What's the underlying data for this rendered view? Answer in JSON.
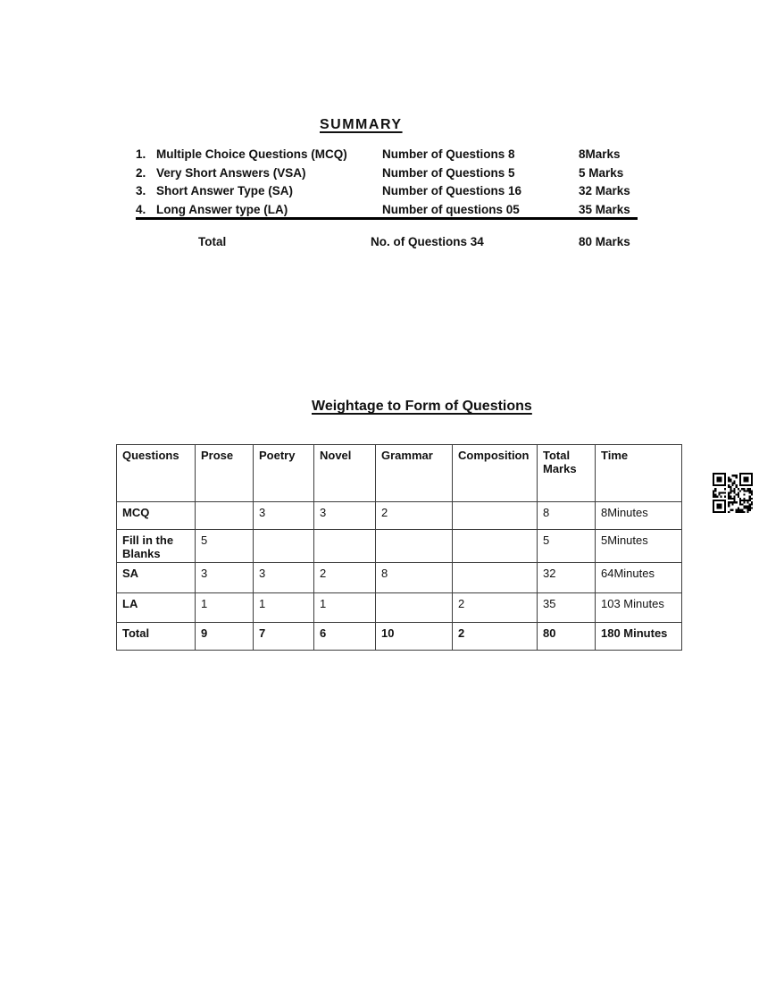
{
  "summary": {
    "title": "SUMMARY",
    "rows": [
      {
        "num": "1.",
        "label": "Multiple Choice Questions (MCQ)",
        "questions": "Number of Questions 8",
        "marks": "8Marks"
      },
      {
        "num": "2.",
        "label": "Very Short Answers (VSA)",
        "questions": "Number of Questions 5",
        "marks": "5 Marks"
      },
      {
        "num": "3.",
        "label": "Short Answer Type (SA)",
        "questions": "Number of Questions 16",
        "marks": "32 Marks"
      },
      {
        "num": "4.",
        "label": "Long Answer type (LA)",
        "questions": "Number of questions 05",
        "marks": "35 Marks"
      }
    ],
    "total": {
      "label": "Total",
      "questions": "No. of Questions 34",
      "marks": "80 Marks"
    }
  },
  "weightage": {
    "title": "Weightage to Form of Questions",
    "headers": [
      "Questions",
      "Prose",
      "Poetry",
      "Novel",
      "Grammar",
      "Composition",
      "Total Marks",
      "Time"
    ],
    "rows": [
      [
        "MCQ",
        "",
        "3",
        "3",
        "2",
        "",
        "8",
        "8Minutes"
      ],
      [
        "Fill in the Blanks",
        "5",
        "",
        "",
        "",
        "",
        "5",
        "5Minutes"
      ],
      [
        "SA",
        "3",
        "3",
        "2",
        "8",
        "",
        "32",
        "64Minutes"
      ],
      [
        "LA",
        "1",
        "1",
        "1",
        "",
        "2",
        "35",
        "103 Minutes"
      ],
      [
        "Total",
        "9",
        "7",
        "6",
        "10",
        "2",
        "80",
        "180 Minutes"
      ]
    ]
  },
  "icons": {
    "qr": "qr-code-icon"
  },
  "colors": {
    "text": "#111111",
    "table_border": "#3d3d3d",
    "divider": "#000000",
    "background": "#ffffff"
  }
}
